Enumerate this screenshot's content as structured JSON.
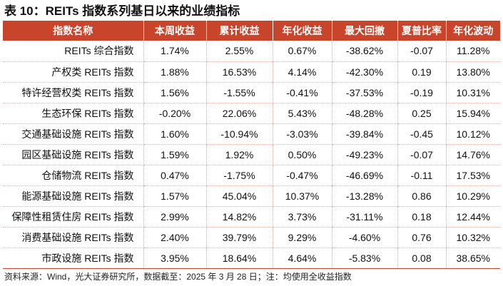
{
  "title": "表 10：REITs 指数系列基日以来的业绩指标",
  "table": {
    "headers": [
      "指数名称",
      "本周收益",
      "累计收益",
      "年化收益",
      "最大回撤",
      "夏普比率",
      "年化波动"
    ],
    "rows": [
      [
        "REITs 综合指数",
        "1.74%",
        "2.55%",
        "0.67%",
        "-38.62%",
        "-0.07",
        "11.28%"
      ],
      [
        "产权类 REITs 指数",
        "1.88%",
        "16.53%",
        "4.14%",
        "-42.30%",
        "0.19",
        "13.80%"
      ],
      [
        "特许经营权类 REITs 指数",
        "1.56%",
        "-1.55%",
        "-0.41%",
        "-37.53%",
        "-0.19",
        "10.31%"
      ],
      [
        "生态环保 REITs 指数",
        "-0.20%",
        "22.06%",
        "5.43%",
        "-48.28%",
        "0.25",
        "15.94%"
      ],
      [
        "交通基础设施 REITs 指数",
        "1.60%",
        "-10.94%",
        "-3.03%",
        "-39.84%",
        "-0.45",
        "10.12%"
      ],
      [
        "园区基础设施 REITs 指数",
        "1.59%",
        "1.92%",
        "0.50%",
        "-49.23%",
        "-0.07",
        "14.76%"
      ],
      [
        "仓储物流 REITs 指数",
        "0.47%",
        "-1.75%",
        "-0.47%",
        "-46.69%",
        "-0.11",
        "17.53%"
      ],
      [
        "能源基础设施 REITs 指数",
        "1.57%",
        "45.04%",
        "10.37%",
        "-13.28%",
        "0.86",
        "10.29%"
      ],
      [
        "保障性租赁住房 REITs 指数",
        "2.99%",
        "14.82%",
        "3.73%",
        "-31.11%",
        "0.18",
        "12.44%"
      ],
      [
        "消费基础设施 REITs 指数",
        "2.40%",
        "39.79%",
        "9.29%",
        "-4.60%",
        "0.76",
        "10.32%"
      ],
      [
        "市政设施 REITs 指数",
        "3.95%",
        "18.64%",
        "4.64%",
        "-5.83%",
        "0.08",
        "38.65%"
      ]
    ]
  },
  "source": "资料来源：Wind，光大证券研究所，数据截至：2025 年 3 月 28 日；注：均使用全收益指数",
  "colors": {
    "header_bg": "#c8452c",
    "header_text": "#ffffff",
    "divider": "#e2b4aa"
  }
}
